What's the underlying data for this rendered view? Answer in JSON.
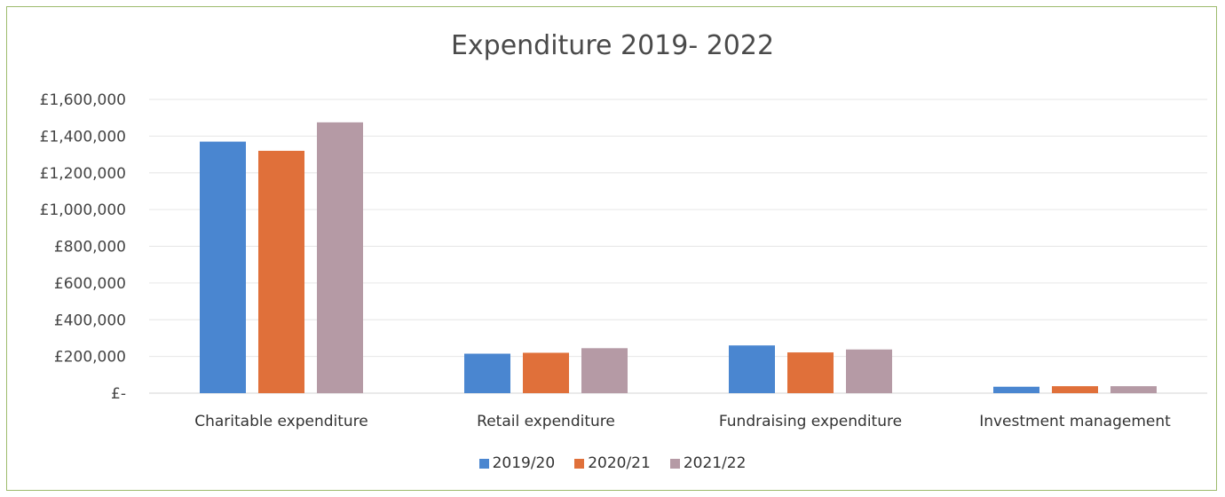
{
  "chart_data": {
    "type": "bar",
    "title": "Expenditure 2019- 2022",
    "categories": [
      "Charitable expenditure",
      "Retail expenditure",
      "Fundraising expenditure",
      "Investment management"
    ],
    "series": [
      {
        "name": "2019/20",
        "color": "#4a86d0",
        "values": [
          1370000,
          215000,
          260000,
          35000
        ]
      },
      {
        "name": "2020/21",
        "color": "#e0703a",
        "values": [
          1320000,
          220000,
          222000,
          38000
        ]
      },
      {
        "name": "2021/22",
        "color": "#b59aa5",
        "values": [
          1475000,
          245000,
          238000,
          38000
        ]
      }
    ],
    "ylim": [
      0,
      1600000
    ],
    "y_ticks": [
      0,
      200000,
      400000,
      600000,
      800000,
      1000000,
      1200000,
      1400000,
      1600000
    ],
    "y_tick_labels": [
      "£-",
      "£200,000",
      "£400,000",
      "£600,000",
      "£800,000",
      "£1,000,000",
      "£1,200,000",
      "£1,400,000",
      "£1,600,000"
    ],
    "grid": true,
    "legend_position": "bottom"
  }
}
